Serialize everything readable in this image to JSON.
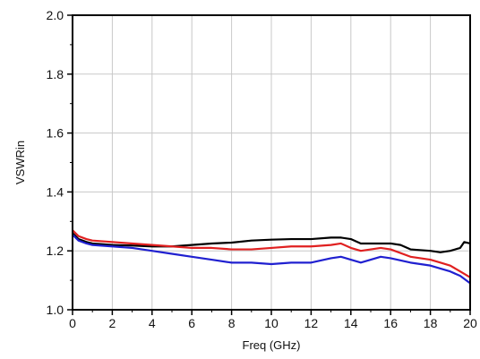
{
  "chart_data": {
    "type": "line",
    "title": "",
    "xlabel": "Freq (GHz)",
    "ylabel": "VSWRin",
    "xlim": [
      0,
      20
    ],
    "ylim": [
      1.0,
      2.0
    ],
    "x_ticks": [
      0,
      2,
      4,
      6,
      8,
      10,
      12,
      14,
      16,
      18,
      20
    ],
    "y_ticks": [
      1.0,
      1.2,
      1.4,
      1.6,
      1.8,
      2.0
    ],
    "x_tick_labels": [
      "0",
      "2",
      "4",
      "6",
      "8",
      "10",
      "12",
      "14",
      "16",
      "18",
      "20"
    ],
    "y_tick_labels": [
      "1.0",
      "1.2",
      "1.4",
      "1.6",
      "1.8",
      "2.0"
    ],
    "grid": true,
    "legend": "none",
    "series": [
      {
        "color": "#000000",
        "points": [
          [
            0,
            1.26
          ],
          [
            0.3,
            1.24
          ],
          [
            0.7,
            1.23
          ],
          [
            1,
            1.225
          ],
          [
            2,
            1.22
          ],
          [
            3,
            1.218
          ],
          [
            4,
            1.215
          ],
          [
            5,
            1.215
          ],
          [
            6,
            1.22
          ],
          [
            7,
            1.225
          ],
          [
            8,
            1.228
          ],
          [
            9,
            1.235
          ],
          [
            10,
            1.238
          ],
          [
            11,
            1.24
          ],
          [
            12,
            1.24
          ],
          [
            13,
            1.245
          ],
          [
            13.5,
            1.245
          ],
          [
            14,
            1.24
          ],
          [
            14.5,
            1.225
          ],
          [
            15,
            1.225
          ],
          [
            16,
            1.225
          ],
          [
            16.5,
            1.22
          ],
          [
            17,
            1.205
          ],
          [
            18,
            1.2
          ],
          [
            18.5,
            1.195
          ],
          [
            19,
            1.2
          ],
          [
            19.5,
            1.21
          ],
          [
            19.7,
            1.23
          ],
          [
            20,
            1.225
          ]
        ]
      },
      {
        "color": "#e02020",
        "points": [
          [
            0,
            1.27
          ],
          [
            0.3,
            1.25
          ],
          [
            0.7,
            1.24
          ],
          [
            1,
            1.235
          ],
          [
            2,
            1.23
          ],
          [
            3,
            1.225
          ],
          [
            4,
            1.22
          ],
          [
            5,
            1.215
          ],
          [
            6,
            1.21
          ],
          [
            7,
            1.21
          ],
          [
            8,
            1.205
          ],
          [
            9,
            1.205
          ],
          [
            10,
            1.21
          ],
          [
            11,
            1.215
          ],
          [
            12,
            1.215
          ],
          [
            13,
            1.22
          ],
          [
            13.5,
            1.225
          ],
          [
            14,
            1.21
          ],
          [
            14.5,
            1.2
          ],
          [
            15,
            1.205
          ],
          [
            15.5,
            1.21
          ],
          [
            16,
            1.205
          ],
          [
            17,
            1.18
          ],
          [
            18,
            1.17
          ],
          [
            18.5,
            1.16
          ],
          [
            19,
            1.15
          ],
          [
            19.5,
            1.13
          ],
          [
            20,
            1.11
          ]
        ]
      },
      {
        "color": "#2020d0",
        "points": [
          [
            0,
            1.255
          ],
          [
            0.3,
            1.235
          ],
          [
            0.7,
            1.225
          ],
          [
            1,
            1.22
          ],
          [
            2,
            1.215
          ],
          [
            3,
            1.21
          ],
          [
            4,
            1.2
          ],
          [
            5,
            1.19
          ],
          [
            6,
            1.18
          ],
          [
            7,
            1.17
          ],
          [
            8,
            1.16
          ],
          [
            9,
            1.16
          ],
          [
            10,
            1.155
          ],
          [
            11,
            1.16
          ],
          [
            12,
            1.16
          ],
          [
            13,
            1.175
          ],
          [
            13.5,
            1.18
          ],
          [
            14,
            1.17
          ],
          [
            14.5,
            1.16
          ],
          [
            15,
            1.17
          ],
          [
            15.5,
            1.18
          ],
          [
            16,
            1.175
          ],
          [
            17,
            1.16
          ],
          [
            18,
            1.15
          ],
          [
            18.5,
            1.14
          ],
          [
            19,
            1.13
          ],
          [
            19.5,
            1.115
          ],
          [
            20,
            1.09
          ]
        ]
      }
    ]
  }
}
